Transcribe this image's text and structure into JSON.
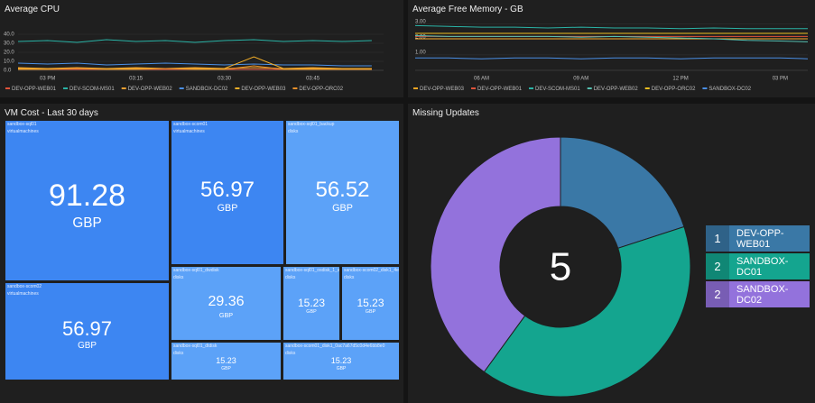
{
  "chart_data": [
    {
      "type": "line",
      "title": "Average CPU",
      "x": [
        "14:55",
        "15:00",
        "15:05",
        "15:10",
        "15:15",
        "15:20",
        "15:25",
        "15:30",
        "15:35",
        "15:40",
        "15:45",
        "15:50",
        "15:55"
      ],
      "xlim": [
        "14:55",
        "15:57"
      ],
      "xticks": [
        {
          "value": "15:00",
          "label": "03 PM"
        },
        {
          "value": "15:15",
          "label": "03:15"
        },
        {
          "value": "15:30",
          "label": "03:30"
        },
        {
          "value": "15:45",
          "label": "03:45"
        }
      ],
      "ylim": [
        0,
        42
      ],
      "yticks": [
        {
          "value": 0,
          "label": "0.0"
        },
        {
          "value": 10,
          "label": "10.0"
        },
        {
          "value": 20,
          "label": "20.0"
        },
        {
          "value": 30,
          "label": "30.0"
        },
        {
          "value": 40,
          "label": "40.0"
        }
      ],
      "grid": true,
      "series": [
        {
          "name": "DEV-OPP-WEB01",
          "color": "#e0533a",
          "values": [
            1,
            1,
            1,
            1,
            1,
            1,
            1,
            1,
            1,
            1,
            1,
            1,
            1
          ]
        },
        {
          "name": "DEV-SCOM-MS01",
          "color": "#2ab3a6",
          "values": [
            32,
            33,
            31,
            34,
            32,
            33,
            31,
            33,
            34,
            32,
            33,
            32,
            33
          ]
        },
        {
          "name": "DEV-OPP-WEB02",
          "color": "#f0a030",
          "values": [
            3,
            2,
            3,
            2,
            3,
            2,
            3,
            2,
            3,
            2,
            3,
            2,
            2
          ]
        },
        {
          "name": "SANDBOX-DC02",
          "color": "#4a8fe6",
          "values": [
            8,
            7,
            8,
            6,
            7,
            8,
            7,
            6,
            7,
            6,
            6,
            5,
            5
          ]
        },
        {
          "name": "DEV-OPP-WEB03",
          "color": "#f5b028",
          "values": [
            2,
            2,
            2,
            2,
            2,
            2,
            2,
            2,
            15,
            2,
            2,
            2,
            2
          ]
        },
        {
          "name": "DEV-OPP-ORC02",
          "color": "#e8902a",
          "values": [
            1,
            1,
            2,
            1,
            1,
            2,
            1,
            1,
            5,
            1,
            1,
            1,
            1
          ]
        }
      ]
    },
    {
      "type": "line",
      "title": "Average Free Memory - GB",
      "x": [
        "04:00",
        "05:00",
        "06:00",
        "07:00",
        "08:00",
        "09:00",
        "10:00",
        "11:00",
        "12:00",
        "13:00",
        "14:00",
        "15:00",
        "15:50"
      ],
      "xlim": [
        "04:00",
        "15:50"
      ],
      "xticks": [
        {
          "value": "06:00",
          "label": "06 AM"
        },
        {
          "value": "09:00",
          "label": "09 AM"
        },
        {
          "value": "12:00",
          "label": "12 PM"
        },
        {
          "value": "15:00",
          "label": "03 PM"
        }
      ],
      "ylim": [
        0,
        3.1
      ],
      "yticks": [
        {
          "value": 1,
          "label": "1.00"
        },
        {
          "value": 2,
          "label": "2.00"
        },
        {
          "value": 3,
          "label": "3.00"
        }
      ],
      "grid": true,
      "series": [
        {
          "name": "DEV-OPP-WEB03",
          "color": "#f5a623",
          "values": [
            2.05,
            2.05,
            2.05,
            2.05,
            2.05,
            2.05,
            2.05,
            2.05,
            2.05,
            2.05,
            2.05,
            2.05,
            2.05
          ]
        },
        {
          "name": "DEV-OPP-WEB01",
          "color": "#e0533a",
          "values": [
            2.2,
            2.2,
            2.2,
            2.2,
            2.2,
            2.2,
            2.2,
            2.2,
            2.2,
            2.2,
            2.2,
            2.2,
            2.2
          ]
        },
        {
          "name": "DEV-SCOM-MS01",
          "color": "#2ab3a6",
          "values": [
            2.9,
            2.85,
            2.8,
            2.8,
            2.75,
            2.8,
            2.75,
            2.75,
            2.7,
            2.75,
            2.7,
            2.7,
            2.7
          ]
        },
        {
          "name": "DEV-OPP-WEB02",
          "color": "#55c0b0",
          "values": [
            2.25,
            2.2,
            2.2,
            2.2,
            2.2,
            2.15,
            2.2,
            2.15,
            2.1,
            2.05,
            1.95,
            1.9,
            1.85
          ]
        },
        {
          "name": "DEV-OPP-ORC02",
          "color": "#f0c020",
          "values": [
            2.4,
            2.4,
            2.4,
            2.4,
            2.4,
            2.4,
            2.4,
            2.4,
            2.4,
            2.4,
            2.4,
            2.4,
            2.4
          ]
        },
        {
          "name": "SANDBOX-DC02",
          "color": "#4a8fe6",
          "values": [
            0.8,
            0.8,
            0.75,
            0.8,
            0.8,
            0.75,
            0.8,
            0.8,
            0.75,
            0.8,
            0.8,
            0.8,
            0.75
          ]
        }
      ]
    },
    {
      "type": "treemap",
      "title": "VM Cost - Last 30 days",
      "unit": "GBP",
      "items": [
        {
          "name": "sandbox-sql01",
          "kind": "virtualmachines",
          "value": 91.28
        },
        {
          "name": "sandbox-scom01",
          "kind": "virtualmachines",
          "value": 56.97
        },
        {
          "name": "sandbox-sql01_backup",
          "kind": "disks",
          "value": 56.52
        },
        {
          "name": "sandbox-scom02",
          "kind": "virtualmachines",
          "value": 56.97
        },
        {
          "name": "sandbox-sql01_dwdisk",
          "kind": "disks",
          "value": 29.36
        },
        {
          "name": "sandbox-sql01_osdisk_1_ad5e",
          "kind": "disks",
          "value": 15.23
        },
        {
          "name": "sandbox-scom02_disk1_4eb",
          "kind": "disks",
          "value": 15.23
        },
        {
          "name": "sandbox-sql01_dtdisk",
          "kind": "disks",
          "value": 15.23
        },
        {
          "name": "sandbox-scom01_disk1_0ac7a67d5c0d4e6bb8e0",
          "kind": "disks",
          "value": 15.23
        }
      ]
    },
    {
      "type": "donut",
      "title": "Missing Updates",
      "total": 5,
      "categories": [
        "DEV-OPP-WEB01",
        "SANDBOX-DC01",
        "SANDBOX-DC02"
      ],
      "values": [
        1,
        2,
        2
      ],
      "colors": [
        "#3a78a6",
        "#14a58f",
        "#9372dc"
      ],
      "legend": "right"
    }
  ]
}
